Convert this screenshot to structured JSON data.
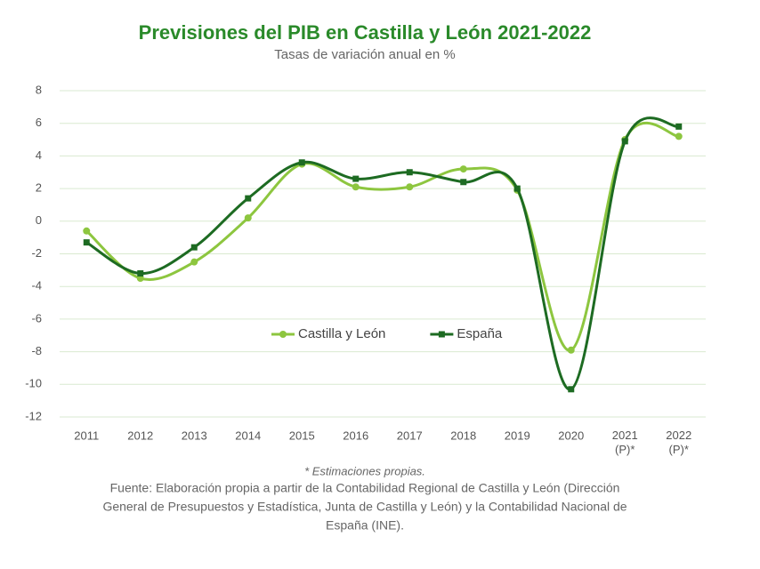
{
  "chart_data": {
    "type": "line",
    "title": "Previsiones del PIB en Castilla y León 2021-2022",
    "subtitle": "Tasas de variación anual en %",
    "categories": [
      "2011",
      "2012",
      "2013",
      "2014",
      "2015",
      "2016",
      "2017",
      "2018",
      "2019",
      "2020",
      "2021 (P)*",
      "2022 (P)*"
    ],
    "series": [
      {
        "name": "Castilla y León",
        "color": "#8dc63f",
        "values": [
          -0.6,
          -3.5,
          -2.5,
          0.2,
          3.5,
          2.1,
          2.1,
          3.2,
          1.9,
          -7.9,
          5.0,
          5.2
        ]
      },
      {
        "name": "España",
        "color": "#1d6b22",
        "values": [
          -1.3,
          -3.2,
          -1.6,
          1.4,
          3.6,
          2.6,
          3.0,
          2.4,
          2.0,
          -10.3,
          4.9,
          5.8
        ]
      }
    ],
    "ylim": [
      -12,
      8
    ],
    "yticks": [
      -12,
      -10,
      -8,
      -6,
      -4,
      -2,
      0,
      2,
      4,
      6,
      8
    ],
    "grid": true,
    "smooth": true,
    "legend": "center",
    "footnote": "* Estimaciones propias.",
    "source": [
      "Fuente: Elaboración propia a partir de la Contabilidad Regional de Castilla y León (Dirección",
      "General de Presupuestos y Estadística, Junta de Castilla y León) y la Contabilidad Nacional de",
      "España (INE)."
    ]
  }
}
